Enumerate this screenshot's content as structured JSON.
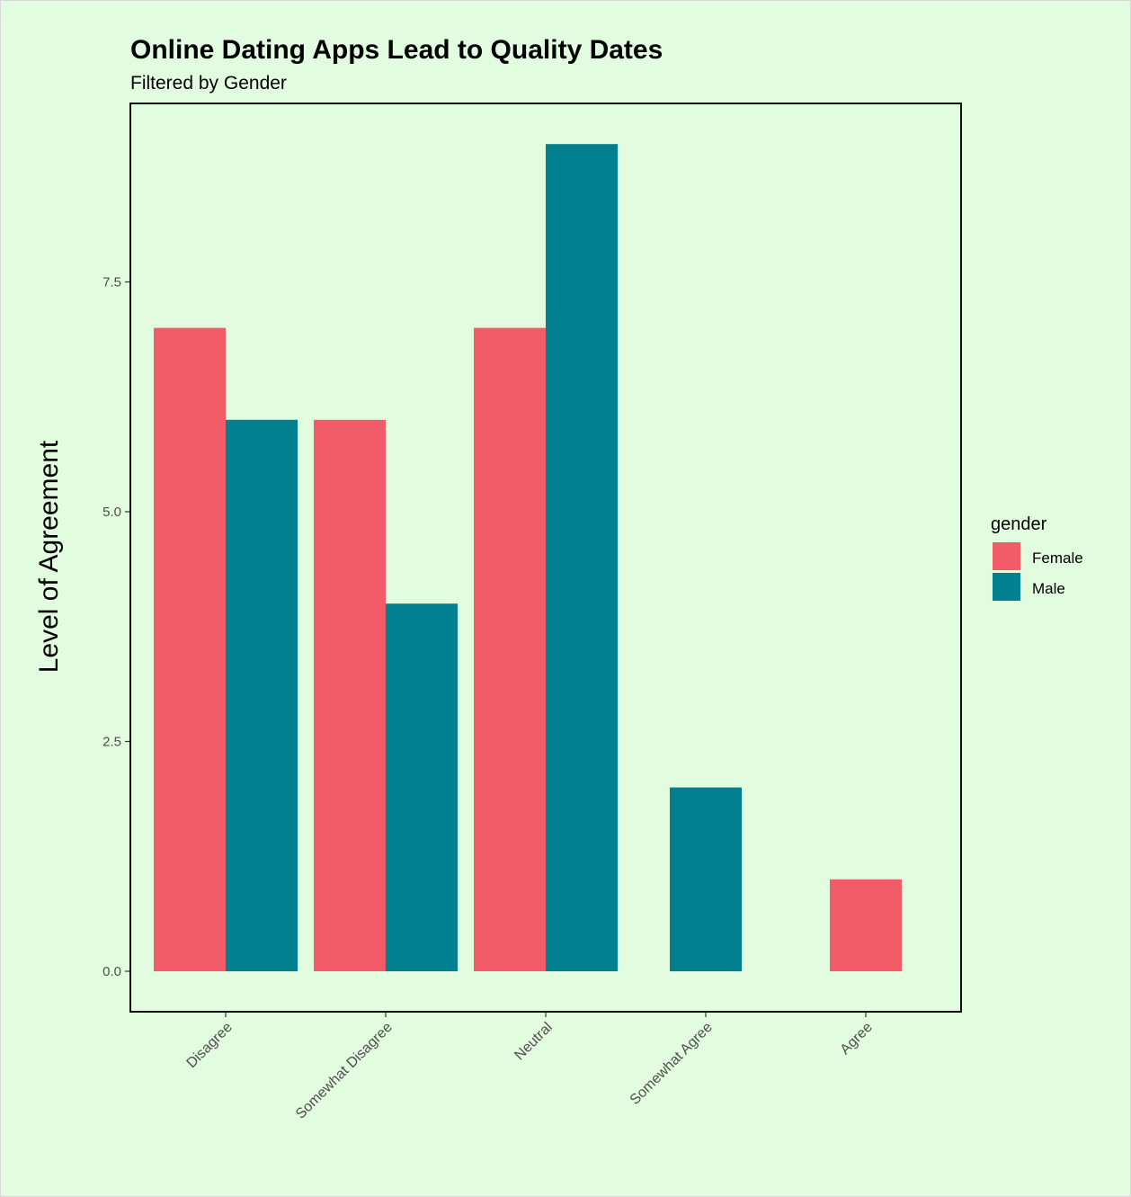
{
  "chart_data": {
    "type": "bar",
    "title": "Online Dating Apps Lead to Quality Dates",
    "subtitle": "Filtered by Gender",
    "xlabel": "",
    "ylabel": "Level of Agreement",
    "categories": [
      "Disagree",
      "Somewhat Disagree",
      "Neutral",
      "Somewhat Agree",
      "Agree"
    ],
    "series": [
      {
        "name": "Female",
        "color": "#F25C69",
        "values": [
          7,
          6,
          7,
          null,
          1
        ]
      },
      {
        "name": "Male",
        "color": "#02808F",
        "values": [
          6,
          4,
          9,
          2,
          null
        ]
      }
    ],
    "ylim": [
      0,
      9
    ],
    "yticks": [
      0,
      2.5,
      5,
      7.5
    ],
    "ytick_labels": [
      "0.0",
      "2.5",
      "5.0",
      "7.5"
    ],
    "legend": {
      "title": "gender",
      "position": "right"
    },
    "grid": false,
    "background_color": "#E2FCE0"
  }
}
